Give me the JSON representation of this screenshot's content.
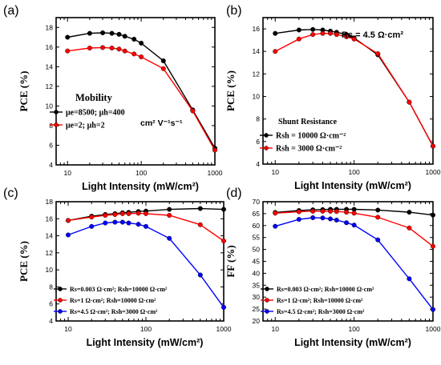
{
  "chart_data": [
    {
      "type": "line",
      "panel_label": "(a)",
      "xlabel": "Light Intensity (mW/cm²)",
      "ylabel": "PCE (%)",
      "xscale": "log",
      "xlim": [
        7,
        1000
      ],
      "ylim": [
        4,
        19
      ],
      "xticks": [
        10,
        100,
        1000
      ],
      "yticks": [
        4,
        6,
        8,
        10,
        12,
        14,
        16,
        18
      ],
      "x": [
        10,
        20,
        30,
        40,
        50,
        60,
        80,
        100,
        200,
        500,
        1000
      ],
      "series": [
        {
          "name": "μe=8500; μh=400",
          "color": "#000000",
          "values": [
            17.0,
            17.4,
            17.45,
            17.4,
            17.3,
            17.1,
            16.8,
            16.4,
            14.6,
            9.6,
            5.7
          ]
        },
        {
          "name": "μe=2; μh=2",
          "color": "#ff0000",
          "values": [
            15.6,
            15.9,
            15.95,
            15.9,
            15.8,
            15.6,
            15.3,
            15.0,
            13.8,
            9.5,
            5.5
          ]
        }
      ],
      "legend_title": "Mobility",
      "legend_placement": "lower-left",
      "annotation": "cm² V⁻¹s⁻¹"
    },
    {
      "type": "line",
      "panel_label": "(b)",
      "xlabel": "Light Intensity (mW/cm²)",
      "ylabel": "PCE (%)",
      "xscale": "log",
      "xlim": [
        7,
        1000
      ],
      "ylim": [
        4,
        17
      ],
      "xticks": [
        10,
        100,
        1000
      ],
      "yticks": [
        4,
        6,
        8,
        10,
        12,
        14,
        16
      ],
      "x": [
        10,
        20,
        30,
        40,
        50,
        60,
        80,
        100,
        200,
        500,
        1000
      ],
      "series": [
        {
          "name": "Rsh = 10000 Ω·cm⁻²",
          "color": "#000000",
          "values": [
            15.6,
            15.9,
            15.95,
            15.9,
            15.8,
            15.7,
            15.5,
            15.2,
            13.7,
            9.5,
            5.6
          ]
        },
        {
          "name": "Rsh = 3000 Ω·cm⁻²",
          "color": "#ff0000",
          "values": [
            14.0,
            15.1,
            15.5,
            15.6,
            15.6,
            15.5,
            15.3,
            15.1,
            13.8,
            9.5,
            5.6
          ]
        }
      ],
      "legend_title": "Shunt Resistance",
      "legend_placement": "center-left",
      "annotation": "Rs = 4.5 Ω·cm²"
    },
    {
      "type": "line",
      "panel_label": "(c)",
      "xlabel": "Light Intensity (mW/cm²)",
      "ylabel": "PCE (%)",
      "xscale": "log",
      "xlim": [
        7,
        1000
      ],
      "ylim": [
        4,
        18
      ],
      "xticks": [
        10,
        100,
        1000
      ],
      "yticks": [
        4,
        6,
        8,
        10,
        12,
        14,
        16,
        18
      ],
      "x": [
        10,
        20,
        30,
        40,
        50,
        60,
        80,
        100,
        200,
        500,
        1000
      ],
      "series": [
        {
          "name": "Rs=0.003 Ω·cm²;  Rsh=10000 Ω·cm²",
          "color": "#000000",
          "values": [
            15.8,
            16.3,
            16.5,
            16.6,
            16.7,
            16.75,
            16.85,
            16.9,
            17.1,
            17.2,
            17.1
          ]
        },
        {
          "name": "Rs=1 Ω·cm²;  Rsh=10000 Ω·cm²",
          "color": "#ff0000",
          "values": [
            15.8,
            16.2,
            16.4,
            16.5,
            16.6,
            16.6,
            16.65,
            16.6,
            16.4,
            15.3,
            13.4
          ]
        },
        {
          "name": "Rs=4.5 Ω·cm²;  Rsh=3000 Ω·cm²",
          "color": "#0000ff",
          "values": [
            14.1,
            15.1,
            15.5,
            15.6,
            15.6,
            15.5,
            15.35,
            15.1,
            13.7,
            9.4,
            5.6
          ]
        }
      ],
      "legend_placement": "lower-left"
    },
    {
      "type": "line",
      "panel_label": "(d)",
      "xlabel": "Light Intensity (mW/cm²)",
      "ylabel": "FF (%)",
      "xscale": "log",
      "xlim": [
        7,
        1000
      ],
      "ylim": [
        20,
        70
      ],
      "xticks": [
        10,
        100,
        1000
      ],
      "yticks": [
        20,
        25,
        30,
        35,
        40,
        45,
        50,
        55,
        60,
        65,
        70
      ],
      "x": [
        10,
        20,
        30,
        40,
        50,
        60,
        80,
        100,
        200,
        500,
        1000
      ],
      "series": [
        {
          "name": "Rs=0.003 Ω·cm²;  Rsh=10000 Ω·cm²",
          "color": "#000000",
          "values": [
            65.5,
            66.3,
            66.6,
            66.7,
            66.8,
            66.8,
            66.8,
            66.8,
            66.5,
            65.6,
            64.4
          ]
        },
        {
          "name": "Rs=1 Ω·cm²;  Rsh=10000 Ω·cm²",
          "color": "#ff0000",
          "values": [
            65.2,
            65.8,
            66.0,
            66.0,
            66.0,
            65.9,
            65.6,
            65.2,
            63.5,
            59.0,
            51.3
          ]
        },
        {
          "name": "Rs=4.5 Ω·cm²;  Rsh=3000 Ω·cm²",
          "color": "#0000ff",
          "values": [
            59.7,
            62.6,
            63.3,
            63.2,
            62.8,
            62.3,
            61.2,
            60.2,
            54.0,
            37.7,
            24.8
          ]
        }
      ],
      "legend_placement": "lower-left"
    }
  ]
}
